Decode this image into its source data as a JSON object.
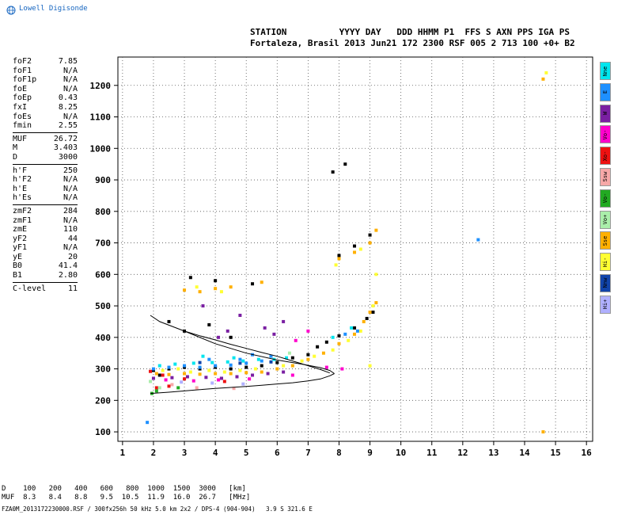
{
  "logo": {
    "text": "Lowell Digisonde",
    "icon": "globe-icon",
    "color": "#1565c0"
  },
  "header": {
    "line1": "STATION          YYYY DAY   DDD HHMM P1  FFS S AXN PPS IGA PS",
    "line2": "Fortaleza, Brasil 2013 Jun21 172 2300 RSF 005 2 713 100 +0+ B2"
  },
  "params": [
    {
      "label": "foF2",
      "value": "7.85"
    },
    {
      "label": "foF1",
      "value": "N/A"
    },
    {
      "label": "foF1p",
      "value": "N/A"
    },
    {
      "label": "foE",
      "value": "N/A"
    },
    {
      "label": "foEp",
      "value": "0.43"
    },
    {
      "label": "fxI",
      "value": "8.25"
    },
    {
      "label": "foEs",
      "value": "N/A"
    },
    {
      "label": "fmin",
      "value": "2.55"
    },
    {
      "sep": true
    },
    {
      "label": "MUF",
      "value": "26.72"
    },
    {
      "label": "M",
      "value": "3.403"
    },
    {
      "label": "D",
      "value": "3000"
    },
    {
      "sep": true
    },
    {
      "label": "h'F",
      "value": "250"
    },
    {
      "label": "h'F2",
      "value": "N/A"
    },
    {
      "label": "h'E",
      "value": "N/A"
    },
    {
      "label": "h'Es",
      "value": "N/A"
    },
    {
      "sep": true
    },
    {
      "label": "zmF2",
      "value": "284"
    },
    {
      "label": "zmF1",
      "value": "N/A"
    },
    {
      "label": "zmE",
      "value": "110"
    },
    {
      "label": "yF2",
      "value": "44"
    },
    {
      "label": "yF1",
      "value": "N/A"
    },
    {
      "label": "yE",
      "value": "20"
    },
    {
      "label": "B0",
      "value": "41.4"
    },
    {
      "label": "B1",
      "value": "2.80"
    },
    {
      "sep": true
    },
    {
      "label": "C-level",
      "value": "11"
    }
  ],
  "legend": [
    {
      "label": "Nne",
      "color": "#00e5ee"
    },
    {
      "label": "E",
      "color": "#1e90ff"
    },
    {
      "label": "W",
      "color": "#7a1fa2"
    },
    {
      "label": "Vo-",
      "color": "#ff00cc"
    },
    {
      "label": "Xo-",
      "color": "#ee1111"
    },
    {
      "label": "Ssw",
      "color": "#f7a8a8"
    },
    {
      "label": "Vo-",
      "color": "#22aa22"
    },
    {
      "label": "Vo+",
      "color": "#aaeeaa"
    },
    {
      "label": "Sse",
      "color": "#ffb000"
    },
    {
      "label": "Hi-",
      "color": "#ffff33"
    },
    {
      "label": "Nnw",
      "color": "#1144aa"
    },
    {
      "label": "Hi+",
      "color": "#b0b0ff"
    }
  ],
  "chart_data": {
    "type": "scatter",
    "title": "",
    "xlabel": "",
    "ylabel": "",
    "xlim": [
      0.85,
      16.2
    ],
    "ylim": [
      70,
      1290
    ],
    "xticks": [
      1,
      2,
      3,
      4,
      5,
      6,
      7,
      8,
      9,
      10,
      11,
      12,
      13,
      14,
      15,
      16
    ],
    "yticks": [
      100,
      200,
      300,
      400,
      500,
      600,
      700,
      800,
      900,
      1000,
      1100,
      1200
    ],
    "grid": true,
    "series": [
      {
        "color": "#000000",
        "points": [
          [
            2.0,
            295
          ],
          [
            2.5,
            300
          ],
          [
            3.0,
            305
          ],
          [
            3.5,
            300
          ],
          [
            4.0,
            305
          ],
          [
            4.5,
            300
          ],
          [
            5.0,
            305
          ],
          [
            5.5,
            310
          ],
          [
            6.0,
            320
          ],
          [
            6.5,
            335
          ],
          [
            7.0,
            345
          ],
          [
            7.3,
            370
          ],
          [
            7.6,
            385
          ],
          [
            8.0,
            405
          ],
          [
            8.5,
            430
          ],
          [
            8.9,
            460
          ],
          [
            9.1,
            480
          ],
          [
            3.2,
            590
          ],
          [
            4.0,
            580
          ],
          [
            5.2,
            570
          ],
          [
            8.0,
            660
          ],
          [
            8.5,
            690
          ],
          [
            9.0,
            725
          ],
          [
            7.8,
            925
          ],
          [
            8.2,
            950
          ],
          [
            2.5,
            450
          ],
          [
            3.0,
            420
          ],
          [
            4.5,
            400
          ],
          [
            3.8,
            440
          ],
          [
            2.2,
            280
          ],
          [
            4.2,
            270
          ]
        ]
      },
      {
        "color": "#ffb000",
        "points": [
          [
            2.1,
            285
          ],
          [
            2.5,
            282
          ],
          [
            3.0,
            285
          ],
          [
            3.5,
            283
          ],
          [
            4.0,
            285
          ],
          [
            4.5,
            285
          ],
          [
            5.0,
            288
          ],
          [
            5.5,
            290
          ],
          [
            6.0,
            300
          ],
          [
            6.5,
            310
          ],
          [
            7.0,
            330
          ],
          [
            7.5,
            350
          ],
          [
            8.0,
            380
          ],
          [
            8.5,
            410
          ],
          [
            8.8,
            450
          ],
          [
            9.0,
            480
          ],
          [
            9.2,
            510
          ],
          [
            3.0,
            550
          ],
          [
            3.5,
            545
          ],
          [
            4.0,
            555
          ],
          [
            4.5,
            560
          ],
          [
            8.0,
            650
          ],
          [
            8.5,
            670
          ],
          [
            9.0,
            700
          ],
          [
            9.2,
            740
          ],
          [
            5.5,
            575
          ],
          [
            14.6,
            1220
          ],
          [
            14.6,
            100
          ]
        ]
      },
      {
        "color": "#ffff33",
        "points": [
          [
            2.3,
            295
          ],
          [
            2.8,
            300
          ],
          [
            3.2,
            290
          ],
          [
            3.8,
            295
          ],
          [
            4.3,
            290
          ],
          [
            4.8,
            295
          ],
          [
            5.3,
            300
          ],
          [
            6.2,
            310
          ],
          [
            6.8,
            325
          ],
          [
            7.2,
            340
          ],
          [
            7.8,
            360
          ],
          [
            8.3,
            390
          ],
          [
            8.7,
            420
          ],
          [
            9.1,
            500
          ],
          [
            9.2,
            600
          ],
          [
            9.0,
            310
          ],
          [
            3.4,
            560
          ],
          [
            4.2,
            545
          ],
          [
            7.9,
            630
          ],
          [
            8.7,
            680
          ],
          [
            14.7,
            1240
          ]
        ]
      },
      {
        "color": "#1e90ff",
        "points": [
          [
            2.0,
            300
          ],
          [
            2.5,
            305
          ],
          [
            3.0,
            310
          ],
          [
            3.5,
            305
          ],
          [
            4.0,
            310
          ],
          [
            4.5,
            312
          ],
          [
            5.0,
            318
          ],
          [
            5.5,
            325
          ],
          [
            3.8,
            330
          ],
          [
            4.8,
            330
          ],
          [
            5.2,
            345
          ],
          [
            5.8,
            340
          ],
          [
            8.2,
            410
          ],
          [
            8.6,
            420
          ],
          [
            12.5,
            710
          ],
          [
            1.8,
            130
          ]
        ]
      },
      {
        "color": "#00e5ee",
        "points": [
          [
            2.2,
            310
          ],
          [
            2.7,
            315
          ],
          [
            3.3,
            318
          ],
          [
            3.9,
            320
          ],
          [
            4.4,
            322
          ],
          [
            4.9,
            325
          ],
          [
            5.4,
            330
          ],
          [
            5.9,
            330
          ],
          [
            6.3,
            335
          ],
          [
            3.6,
            340
          ],
          [
            4.6,
            335
          ],
          [
            7.8,
            400
          ],
          [
            8.4,
            430
          ]
        ]
      },
      {
        "color": "#7a1fa2",
        "points": [
          [
            2.0,
            270
          ],
          [
            2.6,
            272
          ],
          [
            3.1,
            275
          ],
          [
            3.7,
            273
          ],
          [
            4.2,
            270
          ],
          [
            4.7,
            275
          ],
          [
            5.2,
            280
          ],
          [
            5.7,
            285
          ],
          [
            6.2,
            290
          ],
          [
            4.1,
            400
          ],
          [
            4.4,
            420
          ],
          [
            5.6,
            430
          ],
          [
            5.9,
            410
          ],
          [
            6.2,
            450
          ],
          [
            3.6,
            500
          ],
          [
            4.8,
            470
          ]
        ]
      },
      {
        "color": "#ff00cc",
        "points": [
          [
            2.4,
            265
          ],
          [
            3.3,
            262
          ],
          [
            4.1,
            265
          ],
          [
            5.1,
            268
          ],
          [
            6.5,
            280
          ],
          [
            7.6,
            305
          ],
          [
            8.1,
            300
          ],
          [
            6.6,
            390
          ],
          [
            7.0,
            420
          ]
        ]
      },
      {
        "color": "#ee1111",
        "points": [
          [
            1.9,
            292
          ],
          [
            2.3,
            280
          ],
          [
            3.0,
            268
          ],
          [
            2.5,
            245
          ],
          [
            2.1,
            240
          ],
          [
            4.3,
            260
          ]
        ]
      },
      {
        "color": "#22aa22",
        "points": [
          [
            2.1,
            230
          ],
          [
            1.95,
            222
          ],
          [
            2.8,
            240
          ]
        ]
      },
      {
        "color": "#aaeeaa",
        "points": [
          [
            1.9,
            260
          ],
          [
            2.2,
            240
          ],
          [
            6.4,
            350
          ]
        ]
      },
      {
        "color": "#f7a8a8",
        "points": [
          [
            2.6,
            250
          ],
          [
            3.4,
            240
          ],
          [
            4.6,
            238
          ]
        ]
      },
      {
        "color": "#1144aa",
        "points": [
          [
            3.5,
            320
          ],
          [
            4.8,
            318
          ],
          [
            5.8,
            322
          ]
        ]
      },
      {
        "color": "#b0b0ff",
        "points": [
          [
            2.9,
            258
          ],
          [
            3.9,
            255
          ],
          [
            4.9,
            252
          ]
        ]
      }
    ],
    "curves": [
      {
        "name": "",
        "points": [
          [
            1.9,
            470
          ],
          [
            2.2,
            450
          ],
          [
            2.6,
            435
          ],
          [
            3.0,
            420
          ],
          [
            3.5,
            405
          ],
          [
            4.0,
            392
          ],
          [
            4.5,
            378
          ],
          [
            5.0,
            365
          ],
          [
            5.5,
            352
          ],
          [
            6.0,
            340
          ],
          [
            6.5,
            325
          ],
          [
            7.0,
            310
          ],
          [
            7.4,
            298
          ],
          [
            7.7,
            287
          ]
        ]
      },
      {
        "name": "",
        "points": [
          [
            1.9,
            222
          ],
          [
            2.5,
            226
          ],
          [
            3.0,
            230
          ],
          [
            3.5,
            234
          ],
          [
            4.0,
            238
          ],
          [
            4.5,
            241
          ],
          [
            5.0,
            244
          ],
          [
            5.5,
            248
          ],
          [
            6.0,
            252
          ],
          [
            6.5,
            256
          ],
          [
            7.0,
            262
          ],
          [
            7.4,
            268
          ],
          [
            7.7,
            278
          ],
          [
            7.85,
            285
          ]
        ]
      },
      {
        "name": "",
        "points": [
          [
            3.0,
            420
          ],
          [
            4.0,
            380
          ],
          [
            5.0,
            350
          ],
          [
            6.0,
            328
          ],
          [
            6.8,
            315
          ],
          [
            7.4,
            304
          ],
          [
            7.7,
            295
          ],
          [
            7.85,
            285
          ]
        ]
      }
    ]
  },
  "footer": {
    "dist_line": "D    100   200   400   600   800  1000  1500  3000   [km]",
    "muf_line": "MUF  8.3   8.4   8.8   9.5  10.5  11.9  16.0  26.7   [MHz]",
    "file_line": "FZA0M_2013172230000.RSF / 300fx256h 50 kHz 5.0 km 2x2 / DPS-4 (904-904)   3.9 S 321.6 E"
  }
}
